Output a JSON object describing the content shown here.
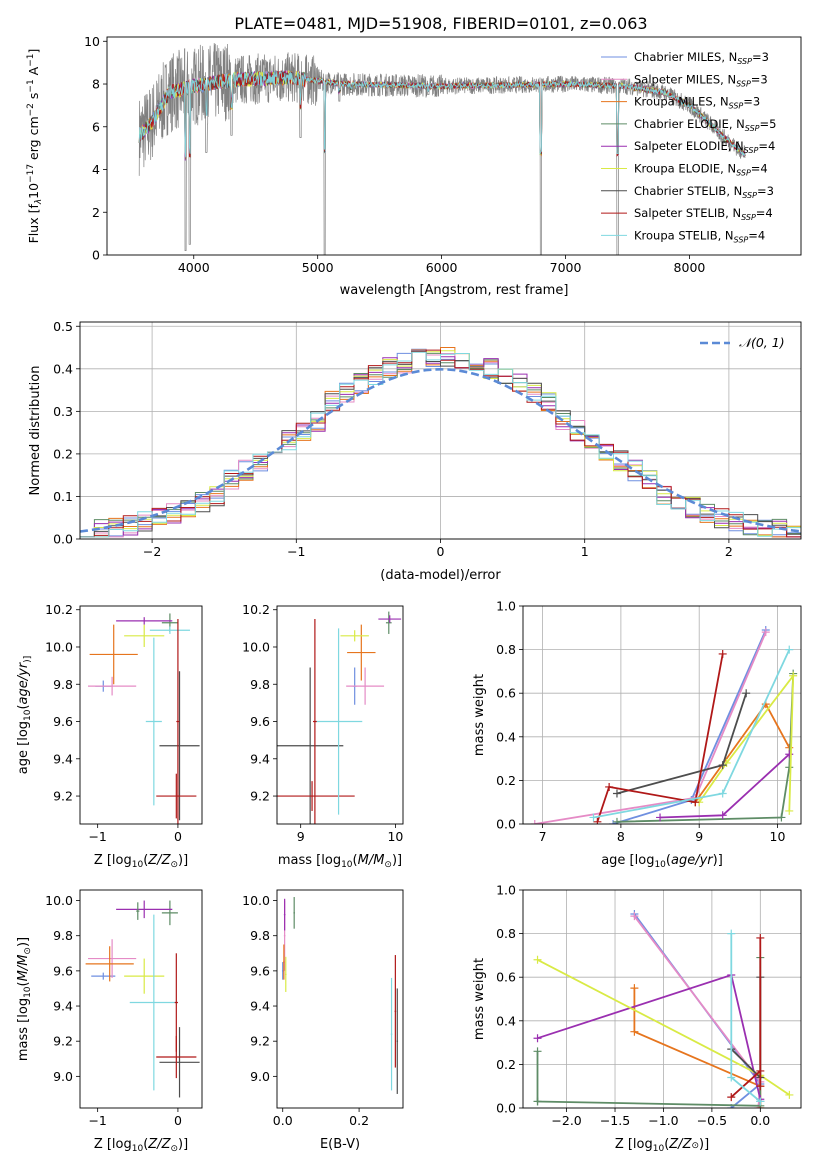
{
  "figure_title": "PLATE=0481, MJD=51908, FIBERID=0101, z=0.063",
  "colors": {
    "Chabrier MILES": "#6f8fe0",
    "Salpeter MILES": "#e58bc6",
    "Kroupa MILES": "#e6751e",
    "Chabrier ELODIE": "#5e8c66",
    "Salpeter ELODIE": "#9a2fb0",
    "Kroupa ELODIE": "#d9ea45",
    "Chabrier STELIB": "#4d4d4d",
    "Salpeter STELIB": "#b01818",
    "Kroupa STELIB": "#7fd8e0",
    "data": "#808080",
    "normal": "#5b8ad6"
  },
  "chart_data": [
    {
      "id": "spectrum",
      "type": "line",
      "title": "PLATE=0481, MJD=51908, FIBERID=0101, z=0.063",
      "xlabel": "wavelength [Angstrom, rest frame]",
      "ylabel": "Flux [f$_\\lambda$10$^{-17}$ erg cm$^{-2}$ s$^{-1}$ A$^{-1}$]",
      "ylabel_parts": [
        "Flux [f",
        "λ",
        "10",
        "−17",
        " erg cm",
        "−2",
        " s",
        "−1",
        " A",
        "−1",
        "]"
      ],
      "xlim": [
        3300,
        8900
      ],
      "ylim": [
        0,
        10.2
      ],
      "xticks": [
        4000,
        5000,
        6000,
        7000,
        8000
      ],
      "yticks": [
        0,
        2,
        4,
        6,
        8,
        10
      ],
      "grid": false,
      "legend_position": "right",
      "legend": [
        {
          "base": "Chabrier MILES, N",
          "sub": "SSP",
          "tail": "=3"
        },
        {
          "base": "Salpeter MILES, N",
          "sub": "SSP",
          "tail": "=3"
        },
        {
          "base": "Kroupa MILES, N",
          "sub": "SSP",
          "tail": "=3"
        },
        {
          "base": "Chabrier ELODIE, N",
          "sub": "SSP",
          "tail": "=5"
        },
        {
          "base": "Salpeter ELODIE, N",
          "sub": "SSP",
          "tail": "=4"
        },
        {
          "base": "Kroupa ELODIE, N",
          "sub": "SSP",
          "tail": "=4"
        },
        {
          "base": "Chabrier STELIB, N",
          "sub": "SSP",
          "tail": "=3"
        },
        {
          "base": "Salpeter STELIB, N",
          "sub": "SSP",
          "tail": "=4"
        },
        {
          "base": "Kroupa STELIB, N",
          "sub": "SSP",
          "tail": "=4"
        }
      ],
      "continuum": [
        [
          3560,
          5.6
        ],
        [
          3650,
          6.1
        ],
        [
          3800,
          7.6
        ],
        [
          4000,
          7.9
        ],
        [
          4300,
          8.2
        ],
        [
          4800,
          8.3
        ],
        [
          5200,
          8.0
        ],
        [
          6000,
          7.9
        ],
        [
          6500,
          7.95
        ],
        [
          7000,
          8.0
        ],
        [
          7500,
          7.9
        ],
        [
          7800,
          7.6
        ],
        [
          8000,
          7.0
        ],
        [
          8100,
          6.5
        ],
        [
          8300,
          5.4
        ],
        [
          8450,
          4.7
        ]
      ],
      "series_names": [
        "Chabrier MILES",
        "Salpeter MILES",
        "Kroupa MILES",
        "Chabrier ELODIE",
        "Salpeter ELODIE",
        "Kroupa ELODIE",
        "Chabrier STELIB",
        "Salpeter STELIB",
        "Kroupa STELIB"
      ],
      "data_range": [
        3560,
        8450
      ],
      "absorption_features": [
        [
          3934,
          0.2
        ],
        [
          3968,
          0.5
        ],
        [
          4102,
          4.8
        ],
        [
          4305,
          5.6
        ],
        [
          4861,
          5.5
        ],
        [
          5056,
          0.0
        ],
        [
          5175,
          7.2
        ],
        [
          5270,
          7.6
        ],
        [
          5893,
          7.5
        ],
        [
          6563,
          7.8
        ],
        [
          6800,
          0.0
        ],
        [
          7420,
          0.0
        ],
        [
          8500,
          4.3
        ]
      ]
    },
    {
      "id": "residuals",
      "type": "line",
      "xlabel": "(data-model)/error",
      "ylabel": "Normed distribution",
      "xlim": [
        -2.5,
        2.5
      ],
      "ylim": [
        0,
        0.51
      ],
      "xticks": [
        -2,
        -1,
        0,
        1,
        2
      ],
      "yticks": [
        0.0,
        0.1,
        0.2,
        0.3,
        0.4,
        0.5
      ],
      "grid": true,
      "legend_position": "top-right",
      "normal_label": "𝒩(0, 1)",
      "bin_width": 0.1,
      "bin_start": -2.5,
      "histogram_series": 9
    },
    {
      "id": "age-vs-Z",
      "type": "scatter",
      "xlabel": "Z [log10(Z/Z☉)]",
      "xlabel_parts": [
        "Z [log",
        "10",
        "(",
        "Z/Z",
        "⊙",
        ")]"
      ],
      "ylabel_parts": [
        "age  [log",
        "10",
        "(",
        "age/yr",
        ")]"
      ],
      "xlim": [
        -1.22,
        0.3
      ],
      "ylim": [
        9.05,
        10.22
      ],
      "xticks": [
        -1,
        0
      ],
      "yticks": [
        9.2,
        9.4,
        9.6,
        9.8,
        10.0,
        10.2
      ],
      "grid": false,
      "crosses": [
        {
          "series": "Chabrier MILES",
          "x": -0.93,
          "y": 9.79,
          "xerr": 0.1,
          "yerr": 0.03
        },
        {
          "series": "Salpeter MILES",
          "x": -0.82,
          "y": 9.79,
          "xerr": 0.3,
          "yerr": 0.05
        },
        {
          "series": "Kroupa MILES",
          "x": -0.8,
          "y": 9.96,
          "xerr": 0.3,
          "yerr": 0.16
        },
        {
          "series": "Chabrier ELODIE",
          "x": -0.1,
          "y": 10.13,
          "xerr": 0.1,
          "yerr": 0.05
        },
        {
          "series": "Salpeter ELODIE",
          "x": -0.42,
          "y": 10.14,
          "xerr": 0.35,
          "yerr": 0.02
        },
        {
          "series": "Kroupa ELODIE",
          "x": -0.42,
          "y": 10.06,
          "xerr": 0.25,
          "yerr": 0.06
        },
        {
          "series": "Chabrier STELIB",
          "x": 0.02,
          "y": 9.47,
          "xerr": 0.25,
          "yerr": 0.4
        },
        {
          "series": "Salpeter STELIB",
          "x": -0.02,
          "y": 9.2,
          "xerr": 0.25,
          "yerr": 0.12
        },
        {
          "series": "Kroupa STELIB",
          "x": -0.3,
          "y": 9.6,
          "xerr": 0.1,
          "yerr": 0.45
        },
        {
          "series": "Kroupa STELIB",
          "x": -0.1,
          "y": 10.09,
          "xerr": 0.25,
          "yerr": 0.02
        },
        {
          "series": "Salpeter STELIB",
          "x": 0.0,
          "y": 9.6,
          "xerr": 0.02,
          "yerr": 0.55
        }
      ]
    },
    {
      "id": "age-vs-mass",
      "type": "scatter",
      "xlabel_parts": [
        "mass [log",
        "10",
        "(",
        "M/M",
        "⊙",
        ")]"
      ],
      "xlim": [
        8.75,
        10.08
      ],
      "ylim": [
        9.05,
        10.22
      ],
      "xticks": [
        9,
        10
      ],
      "yticks": [
        9.2,
        9.4,
        9.6,
        9.8,
        10.0,
        10.2
      ],
      "grid": false,
      "crosses": [
        {
          "series": "Chabrier MILES",
          "x": 9.57,
          "y": 9.79,
          "xerr": 0.02,
          "yerr": 0.1
        },
        {
          "series": "Salpeter MILES",
          "x": 9.68,
          "y": 9.79,
          "xerr": 0.2,
          "yerr": 0.1
        },
        {
          "series": "Kroupa MILES",
          "x": 9.64,
          "y": 9.97,
          "xerr": 0.15,
          "yerr": 0.15
        },
        {
          "series": "Chabrier ELODIE",
          "x": 9.93,
          "y": 10.13,
          "xerr": 0.03,
          "yerr": 0.06
        },
        {
          "series": "Salpeter ELODIE",
          "x": 9.94,
          "y": 10.15,
          "xerr": 0.12,
          "yerr": 0.02
        },
        {
          "series": "Kroupa ELODIE",
          "x": 9.57,
          "y": 10.06,
          "xerr": 0.15,
          "yerr": 0.03
        },
        {
          "series": "Chabrier STELIB",
          "x": 9.1,
          "y": 9.47,
          "xerr": 0.35,
          "yerr": 0.42
        },
        {
          "series": "Salpeter STELIB",
          "x": 9.12,
          "y": 9.2,
          "xerr": 0.45,
          "yerr": 0.08
        },
        {
          "series": "Kroupa STELIB",
          "x": 9.4,
          "y": 9.6,
          "xerr": 0.25,
          "yerr": 0.5
        },
        {
          "series": "Salpeter STELIB",
          "x": 9.15,
          "y": 9.6,
          "xerr": 0.02,
          "yerr": 0.55
        }
      ]
    },
    {
      "id": "mass-weight-vs-age",
      "type": "line",
      "xlabel_parts": [
        "age  [log",
        "10",
        "(",
        "age/yr",
        ")]"
      ],
      "ylabel": "mass weight",
      "xlim": [
        6.75,
        10.3
      ],
      "ylim": [
        0,
        1.0
      ],
      "xticks": [
        7,
        8,
        9,
        10
      ],
      "yticks": [
        0.0,
        0.2,
        0.4,
        0.6,
        0.8,
        1.0
      ],
      "grid": true,
      "series": [
        {
          "name": "Chabrier MILES",
          "x": [
            7.9,
            8.9,
            9.85
          ],
          "y": [
            0.0,
            0.11,
            0.89
          ]
        },
        {
          "name": "Salpeter MILES",
          "x": [
            6.9,
            8.95,
            9.85
          ],
          "y": [
            0.0,
            0.12,
            0.88
          ]
        },
        {
          "name": "Kroupa MILES",
          "x": [
            8.95,
            9.85,
            10.15
          ],
          "y": [
            0.1,
            0.55,
            0.35
          ]
        },
        {
          "name": "Chabrier ELODIE",
          "x": [
            7.95,
            10.05,
            10.15,
            10.2
          ],
          "y": [
            0.01,
            0.03,
            0.26,
            0.69
          ]
        },
        {
          "name": "Salpeter ELODIE",
          "x": [
            8.5,
            9.3,
            10.15
          ],
          "y": [
            0.03,
            0.04,
            0.32
          ]
        },
        {
          "name": "Kroupa ELODIE",
          "x": [
            9.0,
            9.35,
            10.2,
            10.15
          ],
          "y": [
            0.1,
            0.28,
            0.68,
            0.06
          ]
        },
        {
          "name": "Chabrier STELIB",
          "x": [
            7.95,
            9.3,
            9.6
          ],
          "y": [
            0.14,
            0.27,
            0.6
          ]
        },
        {
          "name": "Salpeter STELIB",
          "x": [
            7.7,
            7.85,
            8.95,
            9.3
          ],
          "y": [
            0.01,
            0.17,
            0.1,
            0.78
          ]
        },
        {
          "name": "Kroupa STELIB",
          "x": [
            7.65,
            9.3,
            10.15
          ],
          "y": [
            0.03,
            0.14,
            0.8
          ]
        }
      ]
    },
    {
      "id": "mass-vs-Z",
      "type": "scatter",
      "xlabel_parts": [
        "Z [log",
        "10",
        "(",
        "Z/Z",
        "⊙",
        ")]"
      ],
      "ylabel_parts": [
        "mass [log",
        "10",
        "(",
        "M/M",
        "⊙",
        ")]"
      ],
      "xlim": [
        -1.22,
        0.3
      ],
      "ylim": [
        8.82,
        10.06
      ],
      "xticks": [
        -1,
        0
      ],
      "yticks": [
        9.0,
        9.2,
        9.4,
        9.6,
        9.8,
        10.0
      ],
      "grid": false,
      "crosses": [
        {
          "series": "Chabrier MILES",
          "x": -0.93,
          "y": 9.57,
          "xerr": 0.15,
          "yerr": 0.02
        },
        {
          "series": "Salpeter MILES",
          "x": -0.82,
          "y": 9.67,
          "xerr": 0.3,
          "yerr": 0.11
        },
        {
          "series": "Kroupa MILES",
          "x": -0.85,
          "y": 9.64,
          "xerr": 0.3,
          "yerr": 0.1
        },
        {
          "series": "Chabrier ELODIE",
          "x": -0.1,
          "y": 9.93,
          "xerr": 0.1,
          "yerr": 0.07
        },
        {
          "series": "Salpeter ELODIE",
          "x": -0.42,
          "y": 9.95,
          "xerr": 0.35,
          "yerr": 0.05
        },
        {
          "series": "Kroupa ELODIE",
          "x": -0.42,
          "y": 9.57,
          "xerr": 0.25,
          "yerr": 0.1
        },
        {
          "series": "Chabrier STELIB",
          "x": 0.02,
          "y": 9.08,
          "xerr": 0.25,
          "yerr": 0.2
        },
        {
          "series": "Salpeter STELIB",
          "x": -0.02,
          "y": 9.11,
          "xerr": 0.25,
          "yerr": 0.12
        },
        {
          "series": "Kroupa STELIB",
          "x": -0.3,
          "y": 9.42,
          "xerr": 0.3,
          "yerr": 0.5
        },
        {
          "series": "Salpeter STELIB",
          "x": -0.02,
          "y": 9.42,
          "xerr": 0.02,
          "yerr": 0.28
        },
        {
          "series": "Chabrier ELODIE",
          "x": -0.5,
          "y": 9.94,
          "xerr": 0.02,
          "yerr": 0.05
        }
      ]
    },
    {
      "id": "mass-vs-EBV",
      "type": "scatter",
      "xlabel": "E(B-V)",
      "xlim": [
        -0.015,
        0.315
      ],
      "ylim": [
        8.82,
        10.06
      ],
      "xticks": [
        0.0,
        0.2
      ],
      "yticks": [
        9.0,
        9.2,
        9.4,
        9.6,
        9.8,
        10.0
      ],
      "grid": false,
      "crosses": [
        {
          "series": "Chabrier MILES",
          "x": 0.0,
          "y": 9.6,
          "xerr": 0.002,
          "yerr": 0.05
        },
        {
          "series": "Salpeter MILES",
          "x": 0.005,
          "y": 9.8,
          "xerr": 0.002,
          "yerr": 0.2
        },
        {
          "series": "Kroupa MILES",
          "x": 0.003,
          "y": 9.65,
          "xerr": 0.002,
          "yerr": 0.1
        },
        {
          "series": "Chabrier ELODIE",
          "x": 0.03,
          "y": 9.93,
          "xerr": 0.002,
          "yerr": 0.09
        },
        {
          "series": "Salpeter ELODIE",
          "x": 0.005,
          "y": 9.92,
          "xerr": 0.002,
          "yerr": 0.09
        },
        {
          "series": "Kroupa ELODIE",
          "x": 0.008,
          "y": 9.58,
          "xerr": 0.002,
          "yerr": 0.1
        },
        {
          "series": "Chabrier STELIB",
          "x": 0.3,
          "y": 9.2,
          "xerr": 0.002,
          "yerr": 0.3
        },
        {
          "series": "Salpeter STELIB",
          "x": 0.295,
          "y": 9.37,
          "xerr": 0.002,
          "yerr": 0.32
        },
        {
          "series": "Kroupa STELIB",
          "x": 0.285,
          "y": 9.24,
          "xerr": 0.002,
          "yerr": 0.32
        }
      ]
    },
    {
      "id": "mass-weight-vs-Z",
      "type": "line",
      "xlabel_parts": [
        "Z [log",
        "10",
        "(",
        "Z/Z",
        "⊙",
        ")]"
      ],
      "ylabel": "mass weight",
      "xlim": [
        -2.45,
        0.42
      ],
      "ylim": [
        0,
        1.0
      ],
      "xticks": [
        -2.0,
        -1.5,
        -1.0,
        -0.5,
        0.0
      ],
      "yticks": [
        0.0,
        0.2,
        0.4,
        0.6,
        0.8,
        1.0
      ],
      "grid": true,
      "series": [
        {
          "name": "Chabrier MILES",
          "x": [
            -1.3,
            0.0,
            -0.3
          ],
          "y": [
            0.89,
            0.11,
            0.0
          ]
        },
        {
          "name": "Salpeter MILES",
          "x": [
            -1.3,
            0.0,
            -0.02
          ],
          "y": [
            0.88,
            0.12,
            0.0
          ]
        },
        {
          "name": "Kroupa MILES",
          "x": [
            -1.3,
            -1.3,
            0.0,
            0.0
          ],
          "y": [
            0.55,
            0.35,
            0.1,
            0.0
          ]
        },
        {
          "name": "Chabrier ELODIE",
          "x": [
            -2.3,
            -2.3,
            -2.3,
            0.0,
            0.0
          ],
          "y": [
            0.26,
            0.03,
            0.03,
            0.01,
            0.69
          ]
        },
        {
          "name": "Salpeter ELODIE",
          "x": [
            -2.3,
            -0.3,
            0.0,
            0.0
          ],
          "y": [
            0.32,
            0.61,
            0.04,
            0.03
          ]
        },
        {
          "name": "Kroupa ELODIE",
          "x": [
            -2.3,
            0.0,
            0.3
          ],
          "y": [
            0.68,
            0.15,
            0.06
          ]
        },
        {
          "name": "Chabrier STELIB",
          "x": [
            -0.3,
            0.0,
            0.0
          ],
          "y": [
            0.27,
            0.14,
            0.6
          ]
        },
        {
          "name": "Salpeter STELIB",
          "x": [
            -0.3,
            0.0,
            0.0,
            0.0
          ],
          "y": [
            0.05,
            0.17,
            0.1,
            0.78
          ]
        },
        {
          "name": "Kroupa STELIB",
          "x": [
            -0.3,
            -0.3,
            0.0,
            0.0
          ],
          "y": [
            0.8,
            0.14,
            0.03,
            0.03
          ]
        }
      ]
    }
  ]
}
